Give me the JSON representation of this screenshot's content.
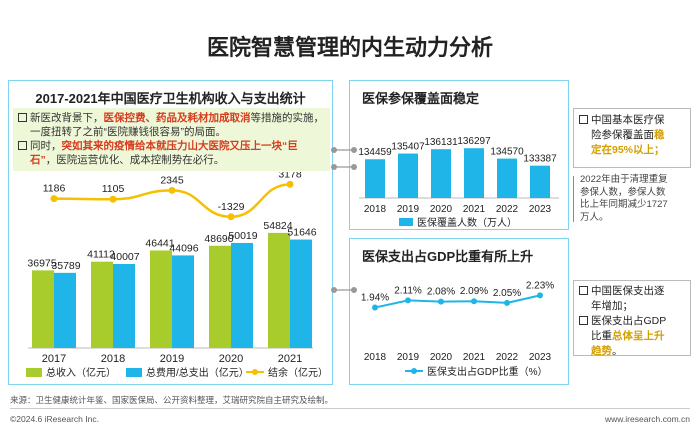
{
  "page": {
    "title": "医院智慧管理的内生动力分析",
    "source_label": "来源：卫生健康统计年鉴、国家医保局、公开资料整理，艾瑞研究院自主研究及绘制。",
    "copyright": "©2024.6 iResearch Inc.",
    "website": "www.iresearch.com.cn"
  },
  "left_panel": {
    "heading": "2017-2021年中国医疗卫生机构收入与支出统计",
    "note1_a": "新医改背景下，",
    "note1_hl": "医保控费、药品及耗材加成取消",
    "note1_b": "等措施的实施，",
    "note1_c": "一度扭转了之前“医院赚钱很容易”的局面。",
    "note2_a": "同时，",
    "note2_hl1": "突如其来的疫情给本就压力山大医院又压上一块“巨",
    "note2_hl2": "石”",
    "note2_b": "，医院运营优化、成本控制势在必行。"
  },
  "top_right": {
    "heading": "医保参保覆盖面稳定",
    "side_a": "中国基本医疗保",
    "side_b": "险参保覆盖面",
    "side_hl": "稳",
    "side_c": "定在95%以上；",
    "note_line1": "2022年由于清理重复",
    "note_line2": "参保人数，参保人数",
    "note_line3": "比上年同期减少1727",
    "note_line4": "万人。"
  },
  "bottom_right": {
    "heading": "医保支出占GDP比重有所上升",
    "side1_a": "中国医保支出逐",
    "side1_b": "年增加；",
    "side2_a": "医保支出占GDP",
    "side2_b": "比重",
    "side2_hl1": "总体呈上升",
    "side2_hl2": "趋势",
    "side2_c": "。"
  },
  "colors": {
    "green": "#a7cc2c",
    "blue": "#1fb5e8",
    "yellow": "#f6c000",
    "panel_border": "#7dd3f0",
    "highlight_red": "#d63c1e",
    "highlight_orange": "#e1a800"
  },
  "chart_data": [
    {
      "type": "bar",
      "categories": [
        "2017",
        "2018",
        "2019",
        "2020",
        "2021"
      ],
      "series": [
        {
          "name": "总收入（亿元）",
          "kind": "bar",
          "values": [
            36975,
            41112,
            46441,
            48690,
            54824
          ]
        },
        {
          "name": "总费用/总支出（亿元）",
          "kind": "bar",
          "values": [
            35789,
            40007,
            44096,
            50019,
            51646
          ]
        },
        {
          "name": "结余（亿元）",
          "kind": "line",
          "values": [
            1186,
            1105,
            2345,
            -1329,
            3178
          ]
        }
      ],
      "ylim": [
        0,
        60000
      ]
    },
    {
      "type": "bar",
      "categories": [
        "2018",
        "2019",
        "2020",
        "2021",
        "2022",
        "2023"
      ],
      "series": [
        {
          "name": "医保覆盖人数（万人）",
          "values": [
            134459,
            135407,
            136131,
            136297,
            134570,
            133387
          ]
        }
      ]
    },
    {
      "type": "line",
      "categories": [
        "2018",
        "2019",
        "2020",
        "2021",
        "2022",
        "2023"
      ],
      "series": [
        {
          "name": "医保支出占GDP比重（%）",
          "values": [
            1.94,
            2.11,
            2.08,
            2.09,
            2.05,
            2.23
          ],
          "labels": [
            "1.94%",
            "2.11%",
            "2.08%",
            "2.09%",
            "2.05%",
            "2.23%"
          ]
        }
      ]
    }
  ]
}
